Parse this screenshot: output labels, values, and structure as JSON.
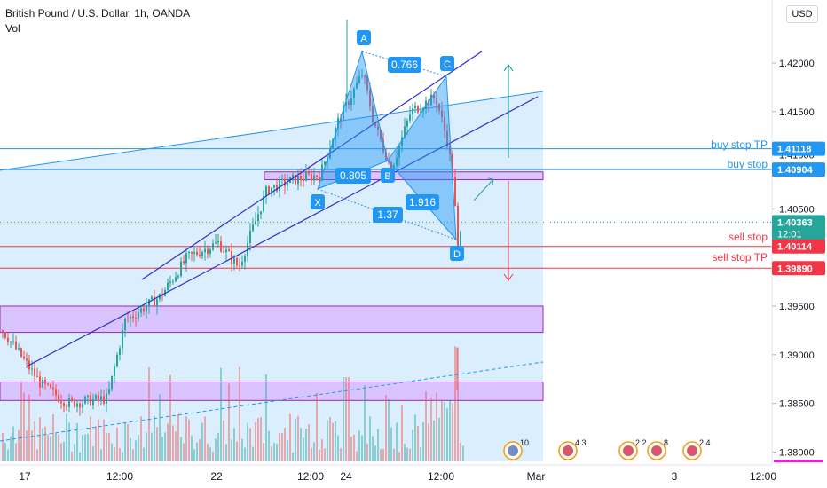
{
  "header": {
    "symbol_title": "British Pound / U.S. Dollar, 1h, OANDA",
    "indicator": "Vol",
    "currency_button": "USD"
  },
  "colors": {
    "up": "#26a69a",
    "down": "#ef5350",
    "pattern_fill": "#2196f3",
    "zone": "#d9b5ff",
    "blue_line": "#2196f3",
    "red_line": "#f23645",
    "channel": "#2e2ed0",
    "arrow_up": "#089981",
    "arrow_down": "#f23645"
  },
  "chart_data": {
    "type": "candlestick",
    "title": "British Pound / U.S. Dollar, 1h, OANDA",
    "y_axis": {
      "ticks": [
        1.42,
        1.415,
        1.405,
        1.395,
        1.39,
        1.385,
        1.38
      ],
      "tick_labels": [
        "1.42000",
        "1.41500",
        "1.40500",
        "1.39500",
        "1.39000",
        "1.38500",
        "1.38000"
      ],
      "partial_label": "1.41000",
      "range": [
        1.3765,
        1.4265
      ]
    },
    "x_axis": {
      "tick_labels": [
        "17",
        "12:00",
        "22",
        "12:00",
        "24",
        "12:00",
        "Mar",
        "3",
        "12:00"
      ]
    },
    "price_labels": [
      {
        "value": "1.41118",
        "color": "#2196f3",
        "note": "buy stop TP"
      },
      {
        "value": "1.40904",
        "color": "#2196f3",
        "note": "buy stop"
      },
      {
        "value": "1.40363",
        "color": "#26a69a",
        "sub": "12:01"
      },
      {
        "value": "1.40114",
        "color": "#f23645",
        "note": "sell stop"
      },
      {
        "value": "1.39890",
        "color": "#f23645",
        "note": "sell stop TP"
      }
    ],
    "harmonic_points": [
      "X",
      "A",
      "B",
      "C",
      "D"
    ],
    "ratios": [
      "0.766",
      "0.805",
      "1.916",
      "1.37"
    ],
    "approx_path": {
      "points": [
        {
          "t": "Feb 16 00:00",
          "price": 1.3925
        },
        {
          "t": "Feb 16 12:00",
          "price": 1.387
        },
        {
          "t": "Feb 17 00:00",
          "price": 1.385
        },
        {
          "t": "Feb 17 12:00",
          "price": 1.3855
        },
        {
          "t": "Feb 18 00:00",
          "price": 1.3935
        },
        {
          "t": "Feb 18 12:00",
          "price": 1.396
        },
        {
          "t": "Feb 19 00:00",
          "price": 1.4
        },
        {
          "t": "Feb 19 12:00",
          "price": 1.4015
        },
        {
          "t": "Feb 20 00:00",
          "price": 1.399
        },
        {
          "t": "Feb 21 12:00",
          "price": 1.407
        },
        {
          "t": "Feb 22 12:00",
          "price": 1.408
        },
        {
          "t": "Feb 23 12:00",
          "price": 1.4085
        },
        {
          "t": "Feb 24 00:00",
          "price": 1.414
        },
        {
          "t": "Feb 24 06:00",
          "price": 1.419
        },
        {
          "t": "Feb 24 12:00",
          "price": 1.414
        },
        {
          "t": "Feb 24 22:00",
          "price": 1.409
        },
        {
          "t": "Feb 25 06:00",
          "price": 1.415
        },
        {
          "t": "Feb 25 16:00",
          "price": 1.4165
        },
        {
          "t": "Feb 25 22:00",
          "price": 1.412
        },
        {
          "t": "Feb 26 02:00",
          "price": 1.408
        },
        {
          "t": "Feb 26 05:00",
          "price": 1.4005
        },
        {
          "t": "Feb 26 08:00",
          "price": 1.4036
        }
      ]
    }
  }
}
